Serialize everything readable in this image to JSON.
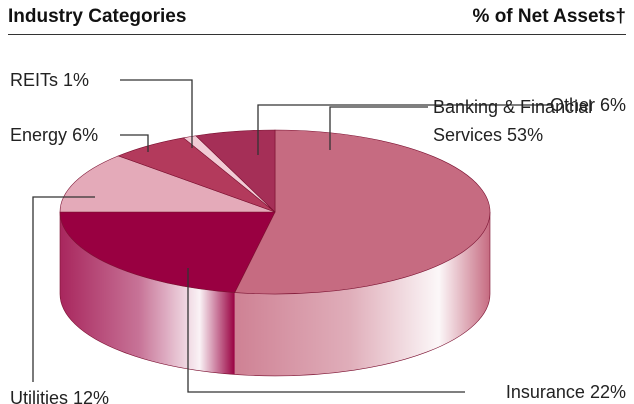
{
  "chart_data": {
    "type": "pie",
    "title": "Industry Categories",
    "subtitle": "% of Net Assets†",
    "categories": [
      "Banking & Financial Services",
      "Insurance",
      "Utilities",
      "Energy",
      "REITs",
      "Other"
    ],
    "values": [
      53,
      22,
      12,
      6,
      1,
      6
    ],
    "value_labels": [
      "53%",
      "22%",
      "12%",
      "6%",
      "1%",
      "6%"
    ],
    "colors": [
      "#c66b81",
      "#990041",
      "#e4aab9",
      "#b33a5c",
      "#f2cbd5",
      "#a52f57"
    ]
  }
}
